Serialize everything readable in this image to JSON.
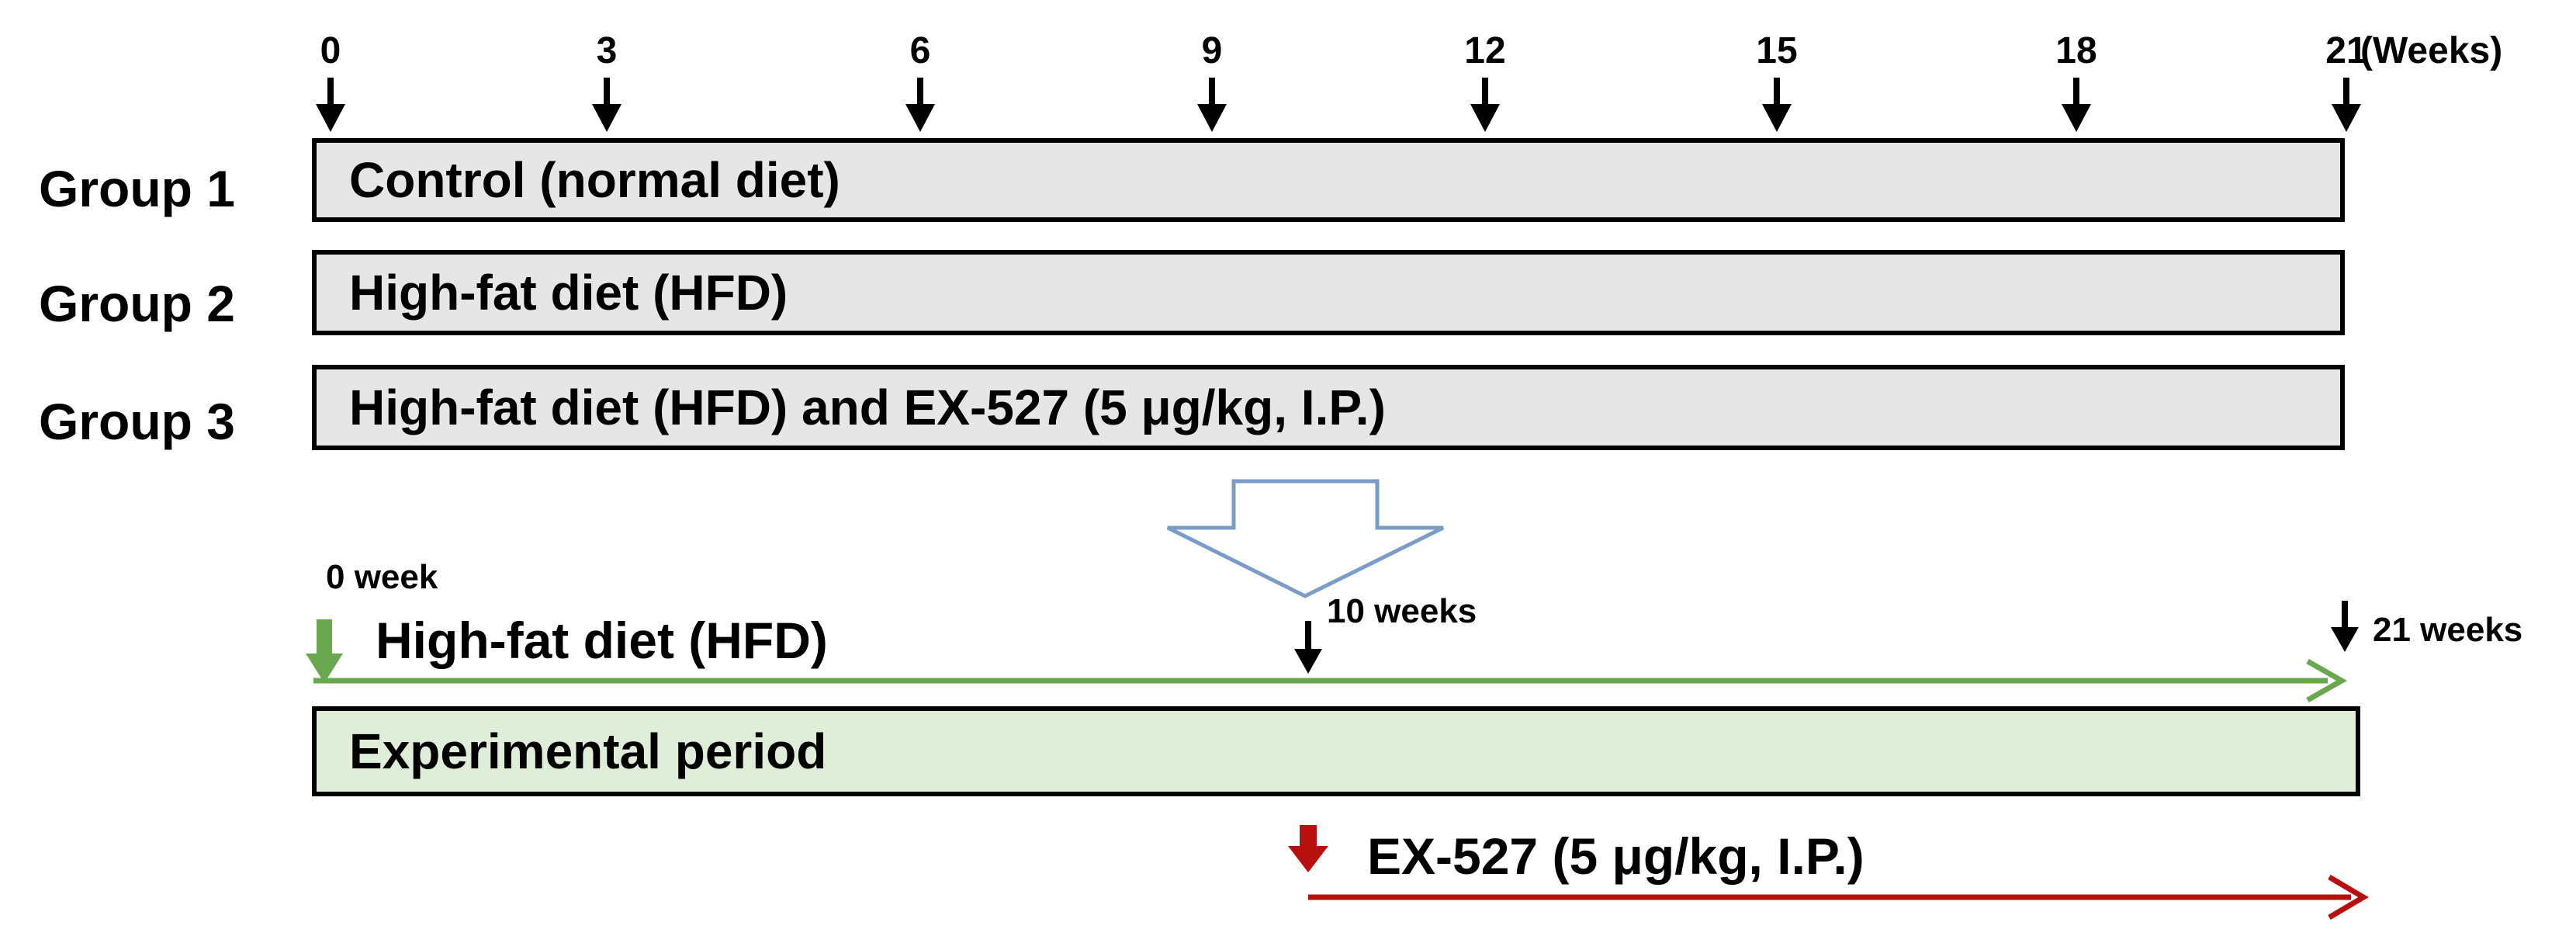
{
  "timeline": {
    "ticks": [
      "0",
      "3",
      "6",
      "9",
      "12",
      "15",
      "18",
      "21"
    ],
    "unit_label": "(Weeks)"
  },
  "groups": [
    {
      "label": "Group 1",
      "text": "Control (normal diet)"
    },
    {
      "label": "Group 2",
      "text": "High-fat diet (HFD)"
    },
    {
      "label": "Group 3",
      "text": "High-fat diet (HFD)  and EX-527 (5 μg/kg, I.P.)"
    }
  ],
  "experiment": {
    "start_label": "0 week",
    "hfd_label": "High-fat diet (HFD)",
    "mid_label": "10 weeks",
    "end_label": "21 weeks",
    "period_label": "Experimental period",
    "treatment_label": "EX-527 (5 μg/kg, I.P.)"
  },
  "colors": {
    "group_bar_fill": "#e6e6e6",
    "period_bar_fill": "#dfeed8",
    "green_arrow": "#6aa84f",
    "red_arrow": "#b80f0f",
    "hollow_arrow_stroke": "#7a9cc6"
  }
}
